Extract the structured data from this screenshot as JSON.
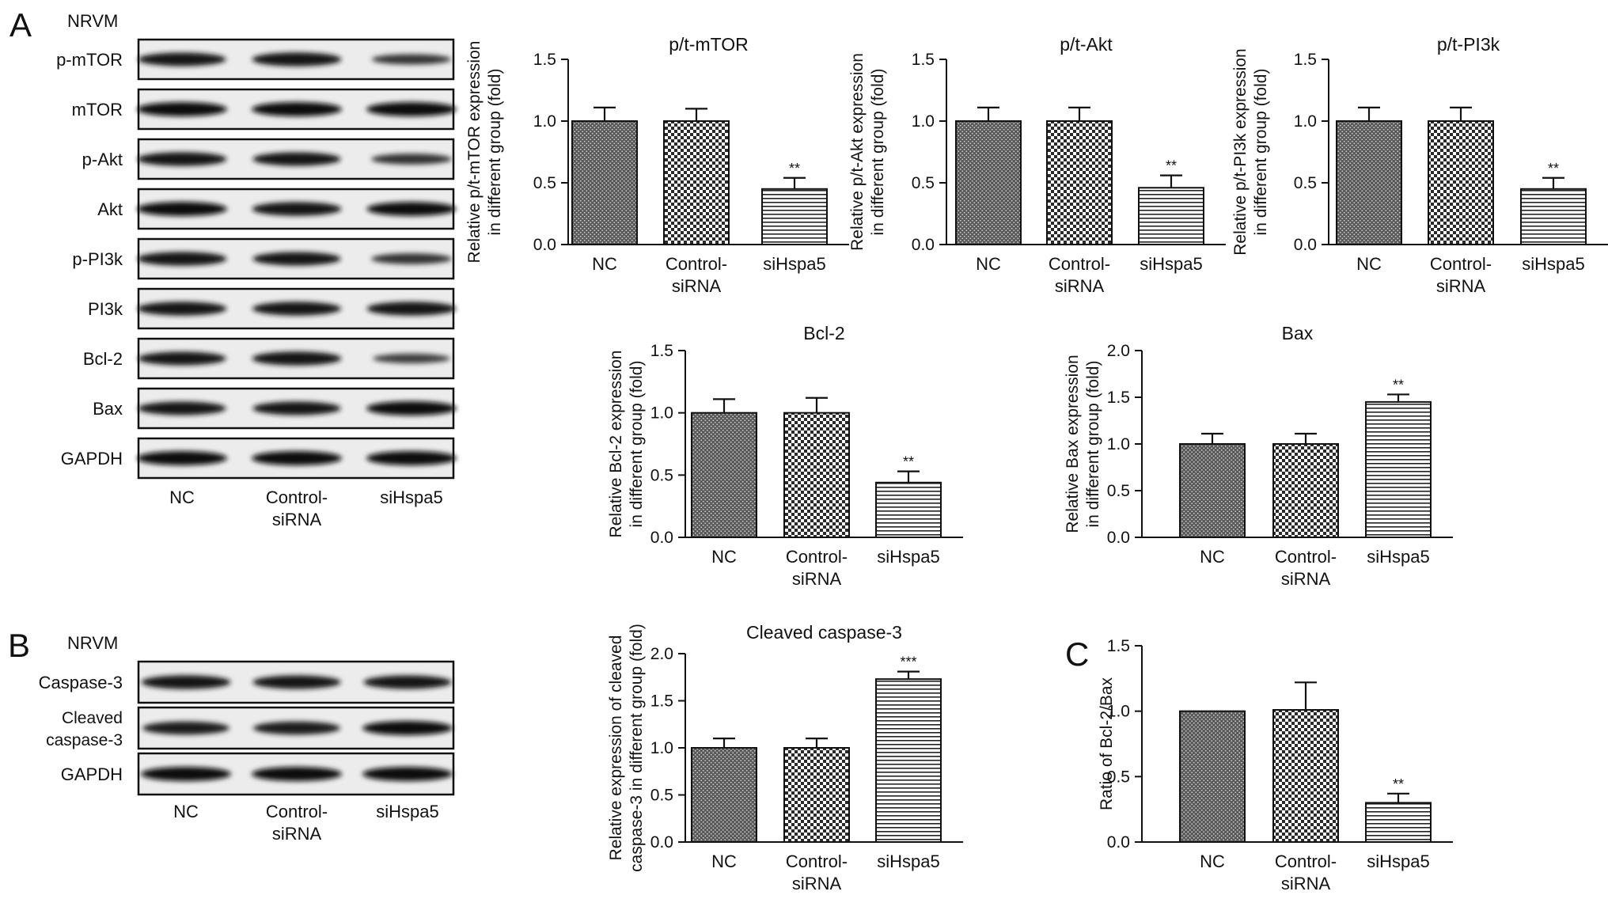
{
  "panel_labels": [
    "A",
    "B",
    "C"
  ],
  "groups": [
    "NC",
    "Control-siRNA",
    "siHspa5"
  ],
  "western_blots": [
    {
      "panel": "A",
      "header": "NRVM",
      "bands": [
        {
          "label": "p-mTOR",
          "intensity": [
            0.85,
            0.9,
            0.45
          ]
        },
        {
          "label": "mTOR",
          "intensity": [
            0.95,
            0.95,
            0.95
          ]
        },
        {
          "label": "p-Akt",
          "intensity": [
            0.9,
            0.85,
            0.5
          ]
        },
        {
          "label": "Akt",
          "intensity": [
            0.95,
            0.9,
            0.92
          ]
        },
        {
          "label": "p-PI3k",
          "intensity": [
            0.9,
            0.85,
            0.5
          ]
        },
        {
          "label": "PI3k",
          "intensity": [
            0.9,
            0.88,
            0.9
          ]
        },
        {
          "label": "Bcl-2",
          "intensity": [
            0.85,
            0.9,
            0.35
          ]
        },
        {
          "label": "Bax",
          "intensity": [
            0.85,
            0.85,
            0.95
          ]
        },
        {
          "label": "GAPDH",
          "intensity": [
            0.95,
            0.95,
            0.95
          ]
        }
      ],
      "lanes": [
        "NC",
        "Control-\nsiRNA",
        "siHspa5"
      ]
    },
    {
      "panel": "B",
      "header": "NRVM",
      "bands": [
        {
          "label": "Caspase-3",
          "intensity": [
            0.9,
            0.85,
            0.85
          ]
        },
        {
          "label": "Cleaved\ncaspase-3",
          "intensity": [
            0.8,
            0.8,
            0.95
          ]
        },
        {
          "label": "GAPDH",
          "intensity": [
            0.95,
            0.95,
            0.95
          ]
        }
      ],
      "lanes": [
        "NC",
        "Control-\nsiRNA",
        "siHspa5"
      ]
    }
  ],
  "chart_data": [
    {
      "type": "bar",
      "title": "p/t-mTOR",
      "ylabel": [
        "Relative p/t-mTOR expression",
        "in different group (fold)"
      ],
      "categories": [
        "NC",
        "Control-\nsiRNA",
        "siHspa5"
      ],
      "values": [
        1.0,
        1.0,
        0.45
      ],
      "errors": [
        0.11,
        0.1,
        0.09
      ],
      "significance": [
        "",
        "",
        "**"
      ],
      "ylim": [
        0,
        1.5
      ],
      "yticks": [
        "0.0",
        "0.5",
        "1.0",
        "1.5"
      ]
    },
    {
      "type": "bar",
      "title": "p/t-Akt",
      "ylabel": [
        "Relative p/t-Akt expression",
        "in different group (fold)"
      ],
      "categories": [
        "NC",
        "Control-\nsiRNA",
        "siHspa5"
      ],
      "values": [
        1.0,
        1.0,
        0.46
      ],
      "errors": [
        0.11,
        0.11,
        0.1
      ],
      "significance": [
        "",
        "",
        "**"
      ],
      "ylim": [
        0,
        1.5
      ],
      "yticks": [
        "0.0",
        "0.5",
        "1.0",
        "1.5"
      ]
    },
    {
      "type": "bar",
      "title": "p/t-PI3k",
      "ylabel": [
        "Relative p/t-PI3k expression",
        "in different group (fold)"
      ],
      "categories": [
        "NC",
        "Control-\nsiRNA",
        "siHspa5"
      ],
      "values": [
        1.0,
        1.0,
        0.45
      ],
      "errors": [
        0.11,
        0.11,
        0.09
      ],
      "significance": [
        "",
        "",
        "**"
      ],
      "ylim": [
        0,
        1.5
      ],
      "yticks": [
        "0.0",
        "0.5",
        "1.0",
        "1.5"
      ]
    },
    {
      "type": "bar",
      "title": "Bcl-2",
      "ylabel": [
        "Relative Bcl-2 expression",
        "in different group (fold)"
      ],
      "categories": [
        "NC",
        "Control-\nsiRNA",
        "siHspa5"
      ],
      "values": [
        1.0,
        1.0,
        0.44
      ],
      "errors": [
        0.11,
        0.12,
        0.09
      ],
      "significance": [
        "",
        "",
        "**"
      ],
      "ylim": [
        0,
        1.5
      ],
      "yticks": [
        "0.0",
        "0.5",
        "1.0",
        "1.5"
      ]
    },
    {
      "type": "bar",
      "title": "Bax",
      "ylabel": [
        "Relative Bax expression",
        "in different group (fold)"
      ],
      "categories": [
        "NC",
        "Control-\nsiRNA",
        "siHspa5"
      ],
      "values": [
        1.0,
        1.0,
        1.45
      ],
      "errors": [
        0.11,
        0.11,
        0.08
      ],
      "significance": [
        "",
        "",
        "**"
      ],
      "ylim": [
        0,
        2.0
      ],
      "yticks": [
        "0.0",
        "0.5",
        "1.0",
        "1.5",
        "2.0"
      ]
    },
    {
      "type": "bar",
      "title": "Cleaved caspase-3",
      "ylabel": [
        "Relative expression of cleaved",
        "caspase-3 in different group (fold)"
      ],
      "categories": [
        "NC",
        "Control-\nsiRNA",
        "siHspa5"
      ],
      "values": [
        1.0,
        1.0,
        1.73
      ],
      "errors": [
        0.1,
        0.1,
        0.08
      ],
      "significance": [
        "",
        "",
        "***"
      ],
      "ylim": [
        0,
        2.0
      ],
      "yticks": [
        "0.0",
        "0.5",
        "1.0",
        "1.5",
        "2.0"
      ]
    },
    {
      "type": "bar",
      "title": "",
      "ylabel": [
        "Ratio of Bcl-2/Bax"
      ],
      "categories": [
        "NC",
        "Control-\nsiRNA",
        "siHspa5"
      ],
      "values": [
        1.0,
        1.01,
        0.3
      ],
      "errors": [
        0.0,
        0.21,
        0.07
      ],
      "significance": [
        "",
        "",
        "**"
      ],
      "ylim": [
        0,
        1.5
      ],
      "yticks": [
        "0.0",
        "0.5",
        "1.0",
        "1.5"
      ]
    }
  ]
}
